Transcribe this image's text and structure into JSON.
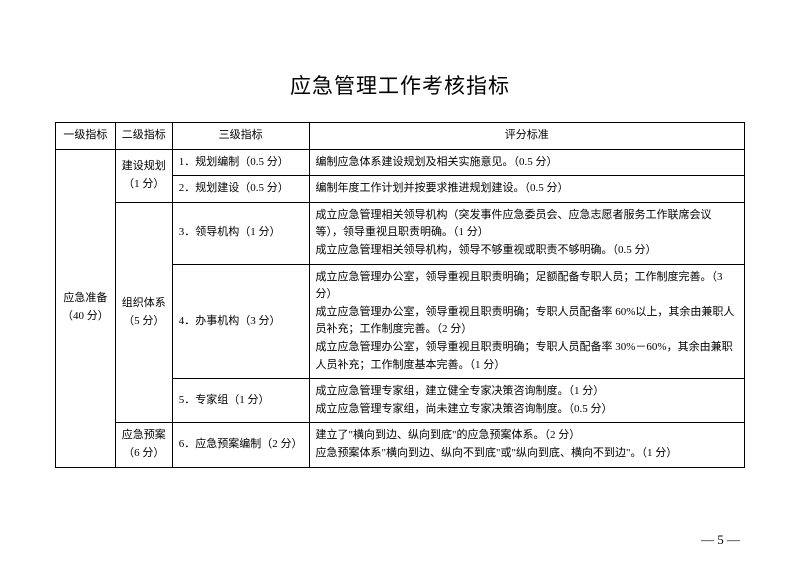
{
  "title": "应急管理工作考核指标",
  "headers": {
    "h1": "一级指标",
    "h2": "二级指标",
    "h3": "三级指标",
    "h4": "评分标准"
  },
  "level1": {
    "name": "应急准备（40 分）"
  },
  "rows": [
    {
      "l2": "建设规划（1 分）",
      "l2_rowspan": 2,
      "l3": "1．规划编制（0.5 分）",
      "l4": "编制应急体系建设规划及相关实施意见。（0.5 分）"
    },
    {
      "l3": "2．规划建设（0.5 分）",
      "l4": "编制年度工作计划并按要求推进规划建设。（0.5 分）"
    },
    {
      "l2": "组织体系（5 分）",
      "l2_rowspan": 3,
      "l3": "3．领导机构（1 分）",
      "l4": "成立应急管理相关领导机构（突发事件应急委员会、应急志愿者服务工作联席会议等），领导重视且职责明确。（1 分）\n成立应急管理相关领导机构，领导不够重视或职责不够明确。（0.5 分）"
    },
    {
      "l3": "4．办事机构（3 分）",
      "l4": "成立应急管理办公室，领导重视且职责明确；足额配备专职人员；工作制度完善。（3 分）\n成立应急管理办公室，领导重视且职责明确；专职人员配备率 60%以上，其余由兼职人员补充；工作制度完善。（2 分）\n成立应急管理办公室，领导重视且职责明确；专职人员配备率 30%－60%，其余由兼职人员补充；工作制度基本完善。（1 分）"
    },
    {
      "l3": "5．专家组（1 分）",
      "l4": "成立应急管理专家组，建立健全专家决策咨询制度。（1 分）\n成立应急管理专家组，尚未建立专家决策咨询制度。（0.5 分）"
    },
    {
      "l2": "应急预案（6 分）",
      "l2_rowspan": 1,
      "l3": "6．应急预案编制（2 分）",
      "l4": "建立了\"横向到边、纵向到底\"的应急预案体系。（2 分）\n应急预案体系\"横向到边、纵向不到底\"或\"纵向到底、横向不到边\"。（1 分）"
    }
  ],
  "pageNum": "— 5 —"
}
